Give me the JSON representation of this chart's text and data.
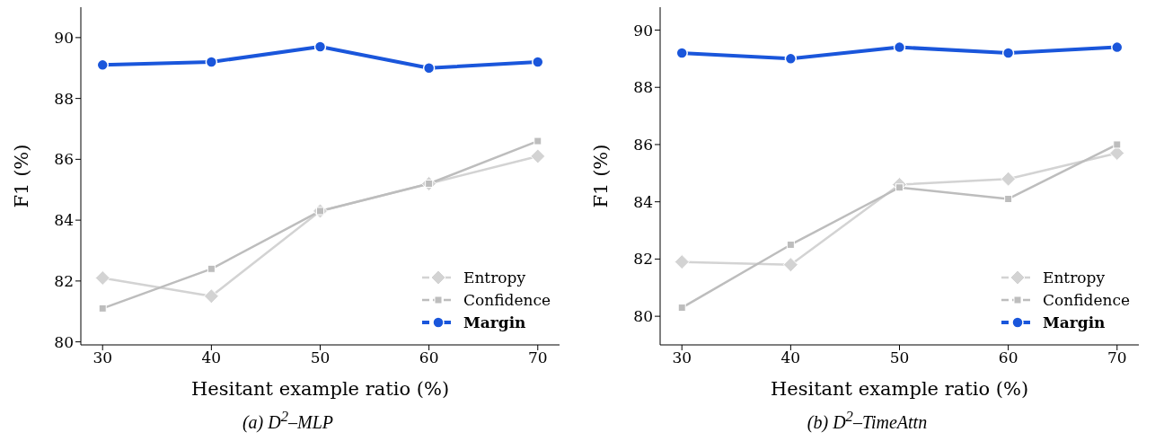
{
  "chart_data": [
    {
      "type": "line",
      "title": "(a) D$^{2}$–MLP",
      "xlabel": "Hesitant example ratio (%)",
      "ylabel": "F1 (%)",
      "x": [
        30,
        40,
        50,
        60,
        70
      ],
      "xlim": [
        28,
        72
      ],
      "xticks": [
        30,
        40,
        50,
        60,
        70
      ],
      "ylim": [
        79.9,
        91
      ],
      "yticks": [
        80,
        82,
        84,
        86,
        88,
        90
      ],
      "grid": false,
      "legend": "bottom right",
      "series": [
        {
          "name": "Entropy",
          "color": "#d3d3d3",
          "marker": "diamond",
          "values": [
            82.1,
            81.5,
            84.3,
            85.2,
            86.1
          ]
        },
        {
          "name": "Confidence",
          "color": "#bdbdbd",
          "marker": "square",
          "values": [
            81.1,
            82.4,
            84.3,
            85.2,
            86.6
          ]
        },
        {
          "name": "Margin",
          "color": "#1a56db",
          "marker": "circle",
          "values": [
            89.1,
            89.2,
            89.7,
            89.0,
            89.2
          ]
        }
      ]
    },
    {
      "type": "line",
      "title": "(b) D$^{2}$–TimeAttn",
      "xlabel": "Hesitant example ratio (%)",
      "ylabel": "F1 (%)",
      "x": [
        30,
        40,
        50,
        60,
        70
      ],
      "xlim": [
        28,
        72
      ],
      "xticks": [
        30,
        40,
        50,
        60,
        70
      ],
      "ylim": [
        79,
        90.8
      ],
      "yticks": [
        80,
        82,
        84,
        86,
        88,
        90
      ],
      "grid": false,
      "legend": "bottom right",
      "series": [
        {
          "name": "Entropy",
          "color": "#d3d3d3",
          "marker": "diamond",
          "values": [
            81.9,
            81.8,
            84.6,
            84.8,
            85.7
          ]
        },
        {
          "name": "Confidence",
          "color": "#bdbdbd",
          "marker": "square",
          "values": [
            80.3,
            82.5,
            84.5,
            84.1,
            86.0
          ]
        },
        {
          "name": "Margin",
          "color": "#1a56db",
          "marker": "circle",
          "values": [
            89.2,
            89.0,
            89.4,
            89.2,
            89.4
          ]
        }
      ]
    }
  ]
}
